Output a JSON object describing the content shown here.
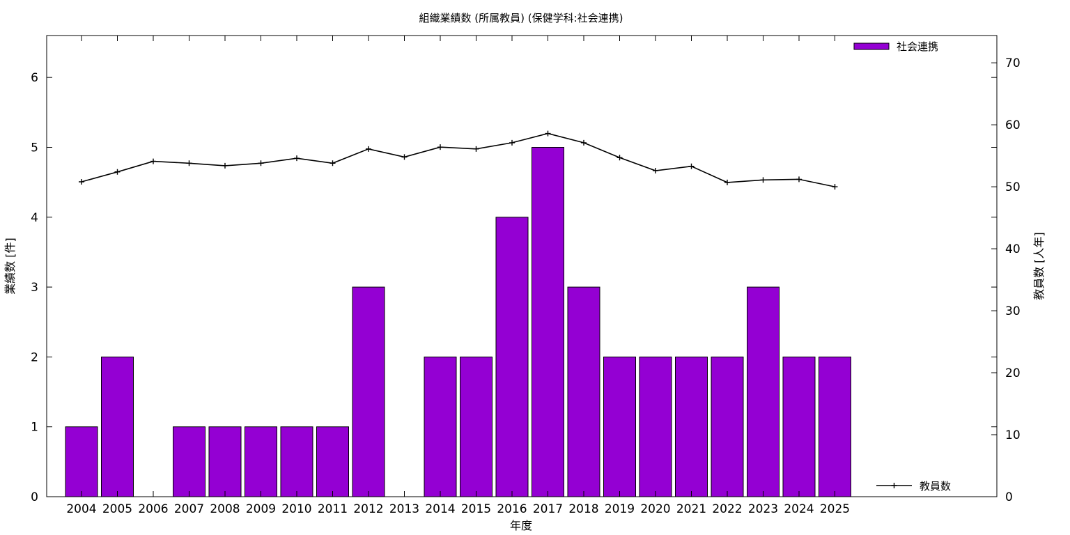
{
  "chart_data": {
    "type": "bar",
    "title": "組織業績数 (所属教員) (保健学科:社会連携)",
    "xlabel": "年度",
    "ylabel": "業績数 [件]",
    "y2label": "教員数 [人年]",
    "categories": [
      "2004",
      "2005",
      "2006",
      "2007",
      "2008",
      "2009",
      "2010",
      "2011",
      "2012",
      "2013",
      "2014",
      "2015",
      "2016",
      "2017",
      "2018",
      "2019",
      "2020",
      "2021",
      "2022",
      "2023",
      "2024",
      "2025"
    ],
    "series": [
      {
        "name": "社会連携",
        "type": "bar",
        "axis": "left",
        "color": "#9400d3",
        "values": [
          1,
          2,
          0,
          1,
          1,
          1,
          1,
          1,
          3,
          0,
          2,
          2,
          4,
          5,
          3,
          2,
          2,
          2,
          2,
          3,
          2,
          2
        ]
      },
      {
        "name": "教員数",
        "type": "line",
        "axis": "right",
        "color": "#000000",
        "marker": "plus",
        "values": [
          50.8,
          52.4,
          54.1,
          53.8,
          53.4,
          53.8,
          54.6,
          53.8,
          56.1,
          54.8,
          56.4,
          56.1,
          57.1,
          58.6,
          57.1,
          54.7,
          52.6,
          53.3,
          50.7,
          51.1,
          51.2,
          50.0
        ]
      }
    ],
    "ylim": [
      0,
      6.6
    ],
    "y2lim": [
      0,
      74.4
    ],
    "yticks": [
      0,
      1,
      2,
      3,
      4,
      5,
      6
    ],
    "y2ticks": [
      0,
      10,
      20,
      30,
      40,
      50,
      60,
      70
    ],
    "legend": [
      {
        "label": "社会連携",
        "placement": "top-right",
        "kind": "bar"
      },
      {
        "label": "教員数",
        "placement": "bottom-right",
        "kind": "line"
      }
    ],
    "grid": false
  }
}
